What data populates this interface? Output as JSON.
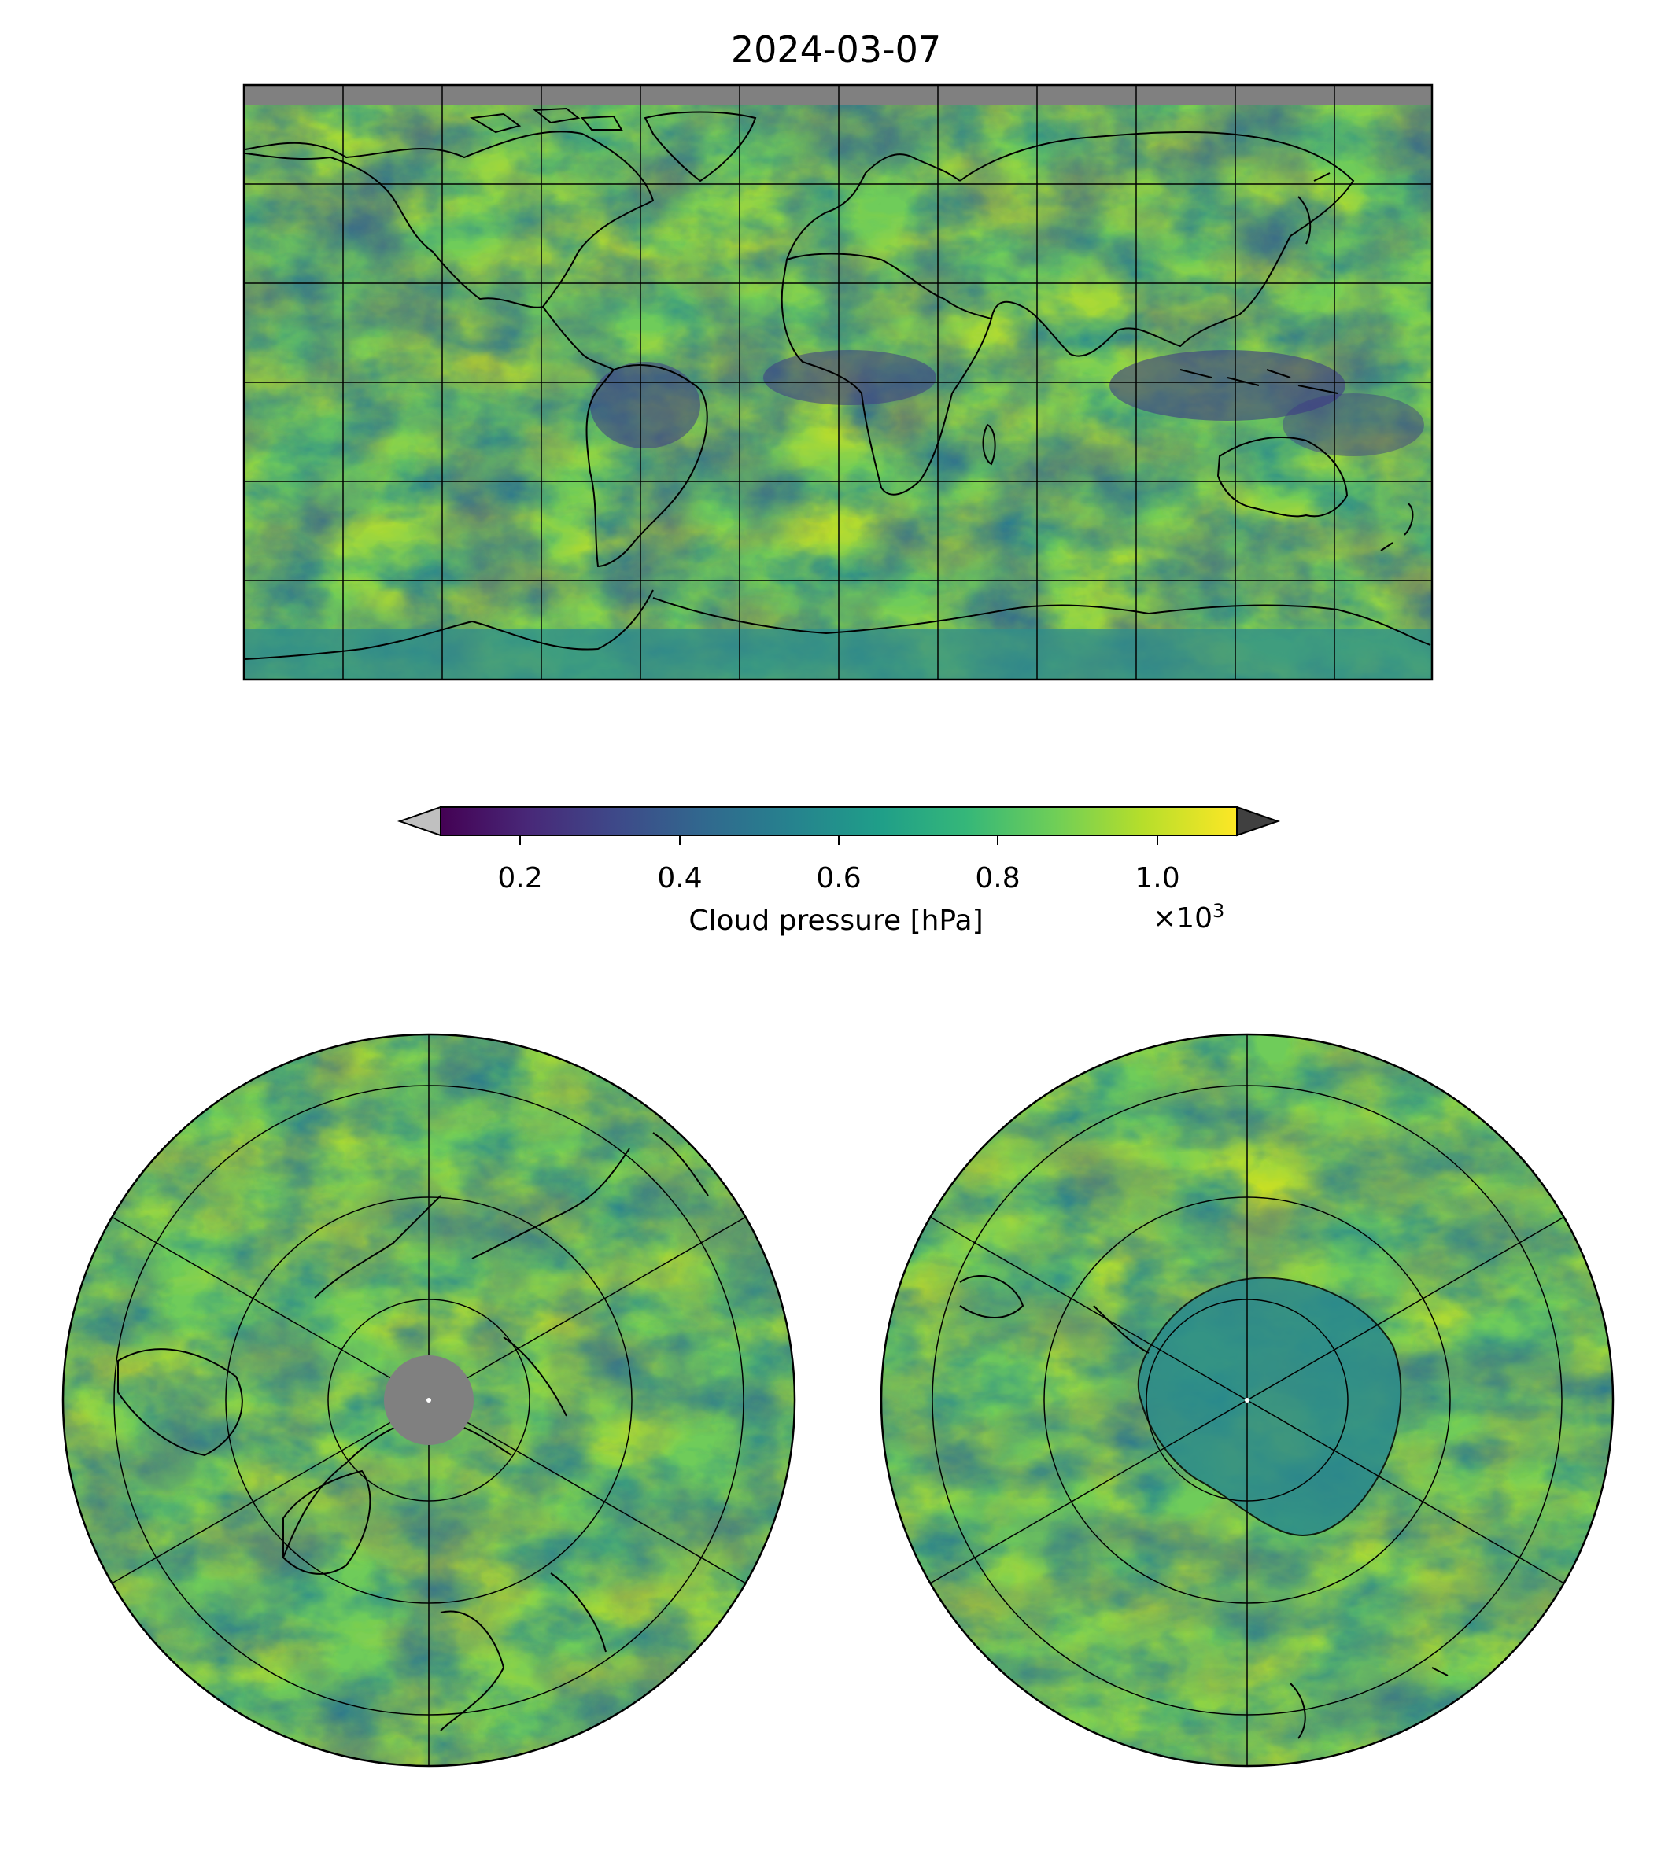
{
  "title": "2024-03-07",
  "colorbar": {
    "label": "Cloud pressure [hPa]",
    "multiplier_base": "×10",
    "multiplier_exp": "3",
    "ticks": [
      "0.2",
      "0.4",
      "0.6",
      "0.8",
      "1.0"
    ],
    "tick_values": [
      0.2,
      0.4,
      0.6,
      0.8,
      1.0
    ],
    "range": [
      0.1,
      1.1
    ],
    "extend": "both",
    "under_color": "#c0c0c0",
    "over_color": "#404040",
    "colormap": "viridis",
    "colormap_stops": [
      "#440154",
      "#482878",
      "#3e4989",
      "#31688e",
      "#26828e",
      "#1f9e89",
      "#35b779",
      "#6ece58",
      "#b5de2b",
      "#fde725"
    ]
  },
  "panels": {
    "global": {
      "projection": "equirectangular",
      "missing_color": "#808080"
    },
    "north_polar": {
      "projection": "north-polar-stereographic",
      "missing_color": "#808080"
    },
    "south_polar": {
      "projection": "south-polar-stereographic"
    }
  },
  "colors": {
    "coastline": "#000000",
    "gridline": "#000000",
    "missing": "#808080"
  }
}
